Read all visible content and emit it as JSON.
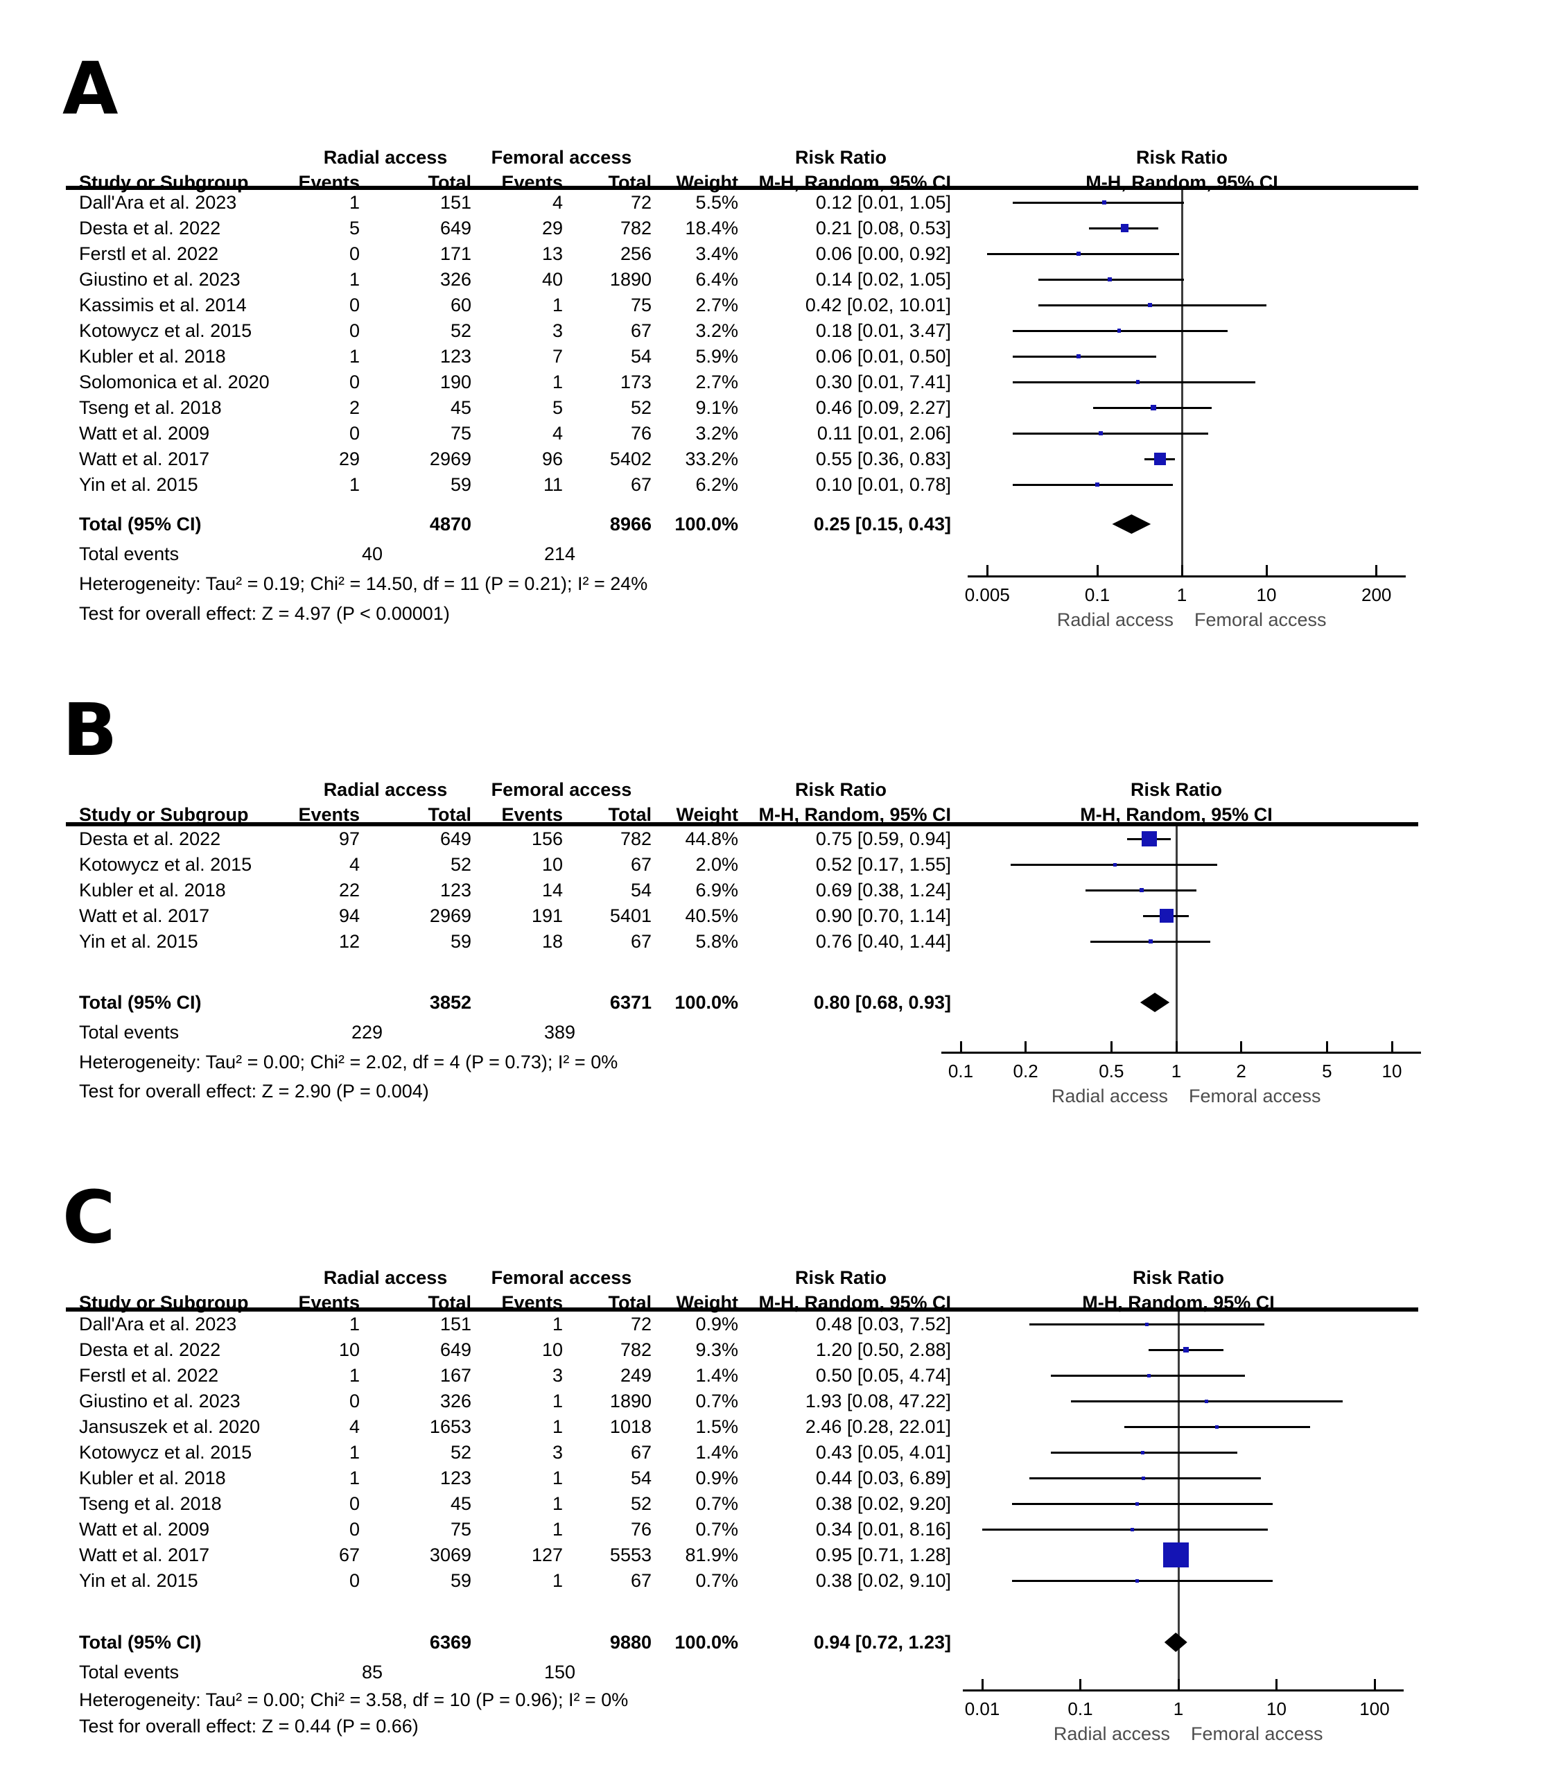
{
  "colors": {
    "marker_blue": "#1414B4",
    "ci_black": "#000000",
    "axis_black": "#000000",
    "null_line_gray": "#3c3c3c",
    "footer_label_gray": "#4d4d4d"
  },
  "column_headers": {
    "group1": "Radial access",
    "group2": "Femoral access",
    "group3": "Risk Ratio",
    "group4": "Risk Ratio",
    "study": "Study or Subgroup",
    "events": "Events",
    "total": "Total",
    "weight": "Weight",
    "mh": "M-H, Random, 95% CI"
  },
  "chart_data": [
    {
      "type": "forest",
      "panel": "A",
      "effect_measure": "Risk Ratio",
      "method": "M-H, Random, 95% CI",
      "studies": [
        {
          "name": "Dall'Ara et al. 2023",
          "events1": "1",
          "total1": "151",
          "events2": "4",
          "total2": "72",
          "weight": "5.5%",
          "ci": "0.12 [0.01, 1.05]",
          "rr": 0.12,
          "lo": 0.01,
          "hi": 1.05,
          "w": 5.5
        },
        {
          "name": "Desta et al. 2022",
          "events1": "5",
          "total1": "649",
          "events2": "29",
          "total2": "782",
          "weight": "18.4%",
          "ci": "0.21 [0.08, 0.53]",
          "rr": 0.21,
          "lo": 0.08,
          "hi": 0.53,
          "w": 18.4
        },
        {
          "name": "Ferstl et al. 2022",
          "events1": "0",
          "total1": "171",
          "events2": "13",
          "total2": "256",
          "weight": "3.4%",
          "ci": "0.06 [0.00, 0.92]",
          "rr": 0.06,
          "lo": 0.004,
          "hi": 0.92,
          "w": 3.4
        },
        {
          "name": "Giustino et al. 2023",
          "events1": "1",
          "total1": "326",
          "events2": "40",
          "total2": "1890",
          "weight": "6.4%",
          "ci": "0.14 [0.02, 1.05]",
          "rr": 0.14,
          "lo": 0.02,
          "hi": 1.05,
          "w": 6.4
        },
        {
          "name": "Kassimis et al. 2014",
          "events1": "0",
          "total1": "60",
          "events2": "1",
          "total2": "75",
          "weight": "2.7%",
          "ci": "0.42 [0.02, 10.01]",
          "rr": 0.42,
          "lo": 0.02,
          "hi": 10.01,
          "w": 2.7
        },
        {
          "name": "Kotowycz et al. 2015",
          "events1": "0",
          "total1": "52",
          "events2": "3",
          "total2": "67",
          "weight": "3.2%",
          "ci": "0.18 [0.01, 3.47]",
          "rr": 0.18,
          "lo": 0.01,
          "hi": 3.47,
          "w": 3.2
        },
        {
          "name": "Kubler et al. 2018",
          "events1": "1",
          "total1": "123",
          "events2": "7",
          "total2": "54",
          "weight": "5.9%",
          "ci": "0.06 [0.01, 0.50]",
          "rr": 0.06,
          "lo": 0.01,
          "hi": 0.5,
          "w": 5.9
        },
        {
          "name": "Solomonica et al. 2020",
          "events1": "0",
          "total1": "190",
          "events2": "1",
          "total2": "173",
          "weight": "2.7%",
          "ci": "0.30 [0.01, 7.41]",
          "rr": 0.3,
          "lo": 0.01,
          "hi": 7.41,
          "w": 2.7
        },
        {
          "name": "Tseng et al. 2018",
          "events1": "2",
          "total1": "45",
          "events2": "5",
          "total2": "52",
          "weight": "9.1%",
          "ci": "0.46 [0.09, 2.27]",
          "rr": 0.46,
          "lo": 0.09,
          "hi": 2.27,
          "w": 9.1
        },
        {
          "name": "Watt et al. 2009",
          "events1": "0",
          "total1": "75",
          "events2": "4",
          "total2": "76",
          "weight": "3.2%",
          "ci": "0.11 [0.01, 2.06]",
          "rr": 0.11,
          "lo": 0.01,
          "hi": 2.06,
          "w": 3.2
        },
        {
          "name": "Watt et al. 2017",
          "events1": "29",
          "total1": "2969",
          "events2": "96",
          "total2": "5402",
          "weight": "33.2%",
          "ci": "0.55 [0.36, 0.83]",
          "rr": 0.55,
          "lo": 0.36,
          "hi": 0.83,
          "w": 33.2
        },
        {
          "name": "Yin et al. 2015",
          "events1": "1",
          "total1": "59",
          "events2": "11",
          "total2": "67",
          "weight": "6.2%",
          "ci": "0.10 [0.01, 0.78]",
          "rr": 0.1,
          "lo": 0.01,
          "hi": 0.78,
          "w": 6.2
        }
      ],
      "total": {
        "label": "Total (95% CI)",
        "total1": "4870",
        "total2": "8966",
        "weight": "100.0%",
        "ci": "0.25 [0.15, 0.43]",
        "rr": 0.25,
        "lo": 0.15,
        "hi": 0.43
      },
      "total_events": {
        "label": "Total events",
        "e1": "40",
        "e2": "214"
      },
      "heterogeneity": "Heterogeneity: Tau² = 0.19; Chi² = 14.50, df = 11 (P = 0.21); I² = 24%",
      "overall_effect": "Test for overall effect: Z = 4.97 (P < 0.00001)",
      "axis": {
        "tick_labels": [
          "0.005",
          "0.1",
          "1",
          "10",
          "200"
        ],
        "tick_values": [
          0.005,
          0.1,
          1,
          10,
          200
        ],
        "min": 0.005,
        "max": 200,
        "left_label": "Radial access",
        "right_label": "Femoral access"
      }
    },
    {
      "type": "forest",
      "panel": "B",
      "effect_measure": "Risk Ratio",
      "method": "M-H, Random, 95% CI",
      "studies": [
        {
          "name": "Desta et al. 2022",
          "events1": "97",
          "total1": "649",
          "events2": "156",
          "total2": "782",
          "weight": "44.8%",
          "ci": "0.75 [0.59, 0.94]",
          "rr": 0.75,
          "lo": 0.59,
          "hi": 0.94,
          "w": 44.8
        },
        {
          "name": "Kotowycz et al. 2015",
          "events1": "4",
          "total1": "52",
          "events2": "10",
          "total2": "67",
          "weight": "2.0%",
          "ci": "0.52 [0.17, 1.55]",
          "rr": 0.52,
          "lo": 0.17,
          "hi": 1.55,
          "w": 2.0
        },
        {
          "name": "Kubler et al. 2018",
          "events1": "22",
          "total1": "123",
          "events2": "14",
          "total2": "54",
          "weight": "6.9%",
          "ci": "0.69 [0.38, 1.24]",
          "rr": 0.69,
          "lo": 0.38,
          "hi": 1.24,
          "w": 6.9
        },
        {
          "name": "Watt et al. 2017",
          "events1": "94",
          "total1": "2969",
          "events2": "191",
          "total2": "5401",
          "weight": "40.5%",
          "ci": "0.90 [0.70, 1.14]",
          "rr": 0.9,
          "lo": 0.7,
          "hi": 1.14,
          "w": 40.5
        },
        {
          "name": "Yin et al. 2015",
          "events1": "12",
          "total1": "59",
          "events2": "18",
          "total2": "67",
          "weight": "5.8%",
          "ci": "0.76 [0.40, 1.44]",
          "rr": 0.76,
          "lo": 0.4,
          "hi": 1.44,
          "w": 5.8
        }
      ],
      "total": {
        "label": "Total (95% CI)",
        "total1": "3852",
        "total2": "6371",
        "weight": "100.0%",
        "ci": "0.80 [0.68, 0.93]",
        "rr": 0.8,
        "lo": 0.68,
        "hi": 0.93
      },
      "total_events": {
        "label": "Total events",
        "e1": "229",
        "e2": "389"
      },
      "heterogeneity": "Heterogeneity: Tau² = 0.00; Chi² = 2.02, df = 4 (P = 0.73); I² = 0%",
      "overall_effect": "Test for overall effect: Z = 2.90 (P = 0.004)",
      "axis": {
        "tick_labels": [
          "0.1",
          "0.2",
          "0.5",
          "1",
          "2",
          "5",
          "10"
        ],
        "tick_values": [
          0.1,
          0.2,
          0.5,
          1,
          2,
          5,
          10
        ],
        "min": 0.1,
        "max": 10,
        "left_label": "Radial access",
        "right_label": "Femoral access"
      }
    },
    {
      "type": "forest",
      "panel": "C",
      "effect_measure": "Risk Ratio",
      "method": "M-H, Random, 95% CI",
      "studies": [
        {
          "name": "Dall'Ara et al. 2023",
          "events1": "1",
          "total1": "151",
          "events2": "1",
          "total2": "72",
          "weight": "0.9%",
          "ci": "0.48 [0.03, 7.52]",
          "rr": 0.48,
          "lo": 0.03,
          "hi": 7.52,
          "w": 0.9
        },
        {
          "name": "Desta et al. 2022",
          "events1": "10",
          "total1": "649",
          "events2": "10",
          "total2": "782",
          "weight": "9.3%",
          "ci": "1.20 [0.50, 2.88]",
          "rr": 1.2,
          "lo": 0.5,
          "hi": 2.88,
          "w": 9.3
        },
        {
          "name": "Ferstl et al. 2022",
          "events1": "1",
          "total1": "167",
          "events2": "3",
          "total2": "249",
          "weight": "1.4%",
          "ci": "0.50 [0.05, 4.74]",
          "rr": 0.5,
          "lo": 0.05,
          "hi": 4.74,
          "w": 1.4
        },
        {
          "name": "Giustino et al. 2023",
          "events1": "0",
          "total1": "326",
          "events2": "1",
          "total2": "1890",
          "weight": "0.7%",
          "ci": "1.93 [0.08, 47.22]",
          "rr": 1.93,
          "lo": 0.08,
          "hi": 47.22,
          "w": 0.7
        },
        {
          "name": "Jansuszek et al. 2020",
          "events1": "4",
          "total1": "1653",
          "events2": "1",
          "total2": "1018",
          "weight": "1.5%",
          "ci": "2.46 [0.28, 22.01]",
          "rr": 2.46,
          "lo": 0.28,
          "hi": 22.01,
          "w": 1.5
        },
        {
          "name": "Kotowycz et al. 2015",
          "events1": "1",
          "total1": "52",
          "events2": "3",
          "total2": "67",
          "weight": "1.4%",
          "ci": "0.43 [0.05, 4.01]",
          "rr": 0.43,
          "lo": 0.05,
          "hi": 4.01,
          "w": 1.4
        },
        {
          "name": "Kubler et al. 2018",
          "events1": "1",
          "total1": "123",
          "events2": "1",
          "total2": "54",
          "weight": "0.9%",
          "ci": "0.44 [0.03, 6.89]",
          "rr": 0.44,
          "lo": 0.03,
          "hi": 6.89,
          "w": 0.9
        },
        {
          "name": "Tseng et al. 2018",
          "events1": "0",
          "total1": "45",
          "events2": "1",
          "total2": "52",
          "weight": "0.7%",
          "ci": "0.38 [0.02, 9.20]",
          "rr": 0.38,
          "lo": 0.02,
          "hi": 9.2,
          "w": 0.7
        },
        {
          "name": "Watt et al. 2009",
          "events1": "0",
          "total1": "75",
          "events2": "1",
          "total2": "76",
          "weight": "0.7%",
          "ci": "0.34 [0.01, 8.16]",
          "rr": 0.34,
          "lo": 0.01,
          "hi": 8.16,
          "w": 0.7
        },
        {
          "name": "Watt et al. 2017",
          "events1": "67",
          "total1": "3069",
          "events2": "127",
          "total2": "5553",
          "weight": "81.9%",
          "ci": "0.95 [0.71, 1.28]",
          "rr": 0.95,
          "lo": 0.71,
          "hi": 1.28,
          "w": 81.9
        },
        {
          "name": "Yin et al. 2015",
          "events1": "0",
          "total1": "59",
          "events2": "1",
          "total2": "67",
          "weight": "0.7%",
          "ci": "0.38 [0.02, 9.10]",
          "rr": 0.38,
          "lo": 0.02,
          "hi": 9.1,
          "w": 0.7
        }
      ],
      "total": {
        "label": "Total (95% CI)",
        "total1": "6369",
        "total2": "9880",
        "weight": "100.0%",
        "ci": "0.94 [0.72, 1.23]",
        "rr": 0.94,
        "lo": 0.72,
        "hi": 1.23
      },
      "total_events": {
        "label": "Total events",
        "e1": "85",
        "e2": "150"
      },
      "heterogeneity": "Heterogeneity: Tau² = 0.00; Chi² = 3.58, df = 10 (P = 0.96); I² = 0%",
      "overall_effect": "Test for overall effect: Z = 0.44 (P = 0.66)",
      "axis": {
        "tick_labels": [
          "0.01",
          "0.1",
          "1",
          "10",
          "100"
        ],
        "tick_values": [
          0.01,
          0.1,
          1,
          10,
          100
        ],
        "min": 0.01,
        "max": 100,
        "left_label": "Radial access",
        "right_label": "Femoral access"
      }
    }
  ]
}
